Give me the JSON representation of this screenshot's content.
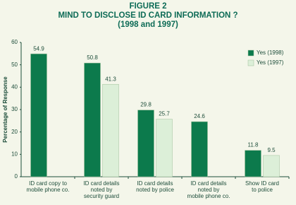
{
  "chart_data": {
    "type": "bar",
    "title": [
      "FIGURE 2",
      "MIND TO DISCLOSE ID CARD INFORMATION ?",
      "(1998 and 1997)"
    ],
    "y_label": "Percentage of Response",
    "categories": [
      [
        "ID card copy to",
        "mobile phone co."
      ],
      [
        "ID card details",
        "noted by",
        "security guard"
      ],
      [
        "ID card details",
        "noted by police"
      ],
      [
        "ID card details",
        "noted by",
        "mobile phone co."
      ],
      [
        "Show ID card",
        "to police"
      ]
    ],
    "series": [
      {
        "name": "Yes (1998)",
        "color": "#0c7a4c",
        "values": [
          54.9,
          50.8,
          29.8,
          24.6,
          11.8
        ]
      },
      {
        "name": "Yes (1997)",
        "color": "#dcefd8",
        "values": [
          null,
          41.3,
          25.7,
          null,
          9.5
        ]
      }
    ],
    "ylim": [
      0,
      60
    ],
    "yticks": [
      0,
      10,
      20,
      30,
      40,
      50,
      60
    ],
    "grid": false,
    "legend": "top-right"
  }
}
